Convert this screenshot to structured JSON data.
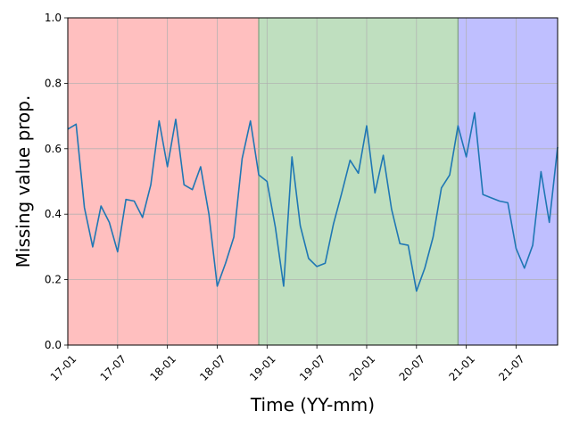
{
  "chart_data": {
    "type": "line",
    "xlabel": "Time (YY-mm)",
    "ylabel": "Missing value prop.",
    "ylim": [
      0,
      1.0
    ],
    "xlim": [
      "2017-01",
      "2021-12"
    ],
    "grid": true,
    "x_tick_labels": [
      "17-01",
      "17-07",
      "18-01",
      "18-07",
      "19-01",
      "19-07",
      "20-01",
      "20-07",
      "21-01",
      "21-07"
    ],
    "x_tick_values": [
      "2017-01",
      "2017-07",
      "2018-01",
      "2018-07",
      "2019-01",
      "2019-07",
      "2020-01",
      "2020-07",
      "2021-01",
      "2021-07"
    ],
    "y_tick_labels": [
      "0.0",
      "0.2",
      "0.4",
      "0.6",
      "0.8",
      "1.0"
    ],
    "y_tick_values": [
      0,
      0.2,
      0.4,
      0.6,
      0.8,
      1.0
    ],
    "shaded_regions": [
      {
        "start": "2017-01",
        "end": "2018-12",
        "color": "#ffbfbf"
      },
      {
        "start": "2018-12",
        "end": "2020-12",
        "color": "#bfdfbf"
      },
      {
        "start": "2020-12",
        "end": "2021-12",
        "color": "#bfbfff"
      }
    ],
    "line_color": "#1f77b4",
    "series": [
      {
        "x": [
          "2017-01",
          "2017-02",
          "2017-03",
          "2017-04",
          "2017-05",
          "2017-06",
          "2017-07",
          "2017-08",
          "2017-09",
          "2017-10",
          "2017-11",
          "2017-12",
          "2018-01",
          "2018-02",
          "2018-03",
          "2018-04",
          "2018-05",
          "2018-06",
          "2018-07",
          "2018-08",
          "2018-09",
          "2018-10",
          "2018-11",
          "2018-12",
          "2019-01",
          "2019-02",
          "2019-03",
          "2019-04",
          "2019-05",
          "2019-06",
          "2019-07",
          "2019-08",
          "2019-09",
          "2019-10",
          "2019-11",
          "2019-12",
          "2020-01",
          "2020-02",
          "2020-03",
          "2020-04",
          "2020-05",
          "2020-06",
          "2020-07",
          "2020-08",
          "2020-09",
          "2020-10",
          "2020-11",
          "2020-12",
          "2021-01",
          "2021-02",
          "2021-03",
          "2021-04",
          "2021-05",
          "2021-06",
          "2021-07",
          "2021-08",
          "2021-09",
          "2021-10",
          "2021-11",
          "2021-12"
        ],
        "values": [
          0.66,
          0.675,
          0.42,
          0.3,
          0.425,
          0.375,
          0.285,
          0.445,
          0.44,
          0.39,
          0.49,
          0.685,
          0.545,
          0.69,
          0.49,
          0.475,
          0.545,
          0.4,
          0.18,
          0.25,
          0.33,
          0.57,
          0.685,
          0.52,
          0.5,
          0.36,
          0.18,
          0.575,
          0.365,
          0.265,
          0.24,
          0.25,
          0.37,
          0.465,
          0.565,
          0.525,
          0.67,
          0.465,
          0.58,
          0.415,
          0.31,
          0.305,
          0.165,
          0.235,
          0.33,
          0.48,
          0.52,
          0.67,
          0.575,
          0.71,
          0.46,
          0.45,
          0.44,
          0.435,
          0.295,
          0.235,
          0.305,
          0.53,
          0.375,
          0.605
        ]
      }
    ]
  }
}
